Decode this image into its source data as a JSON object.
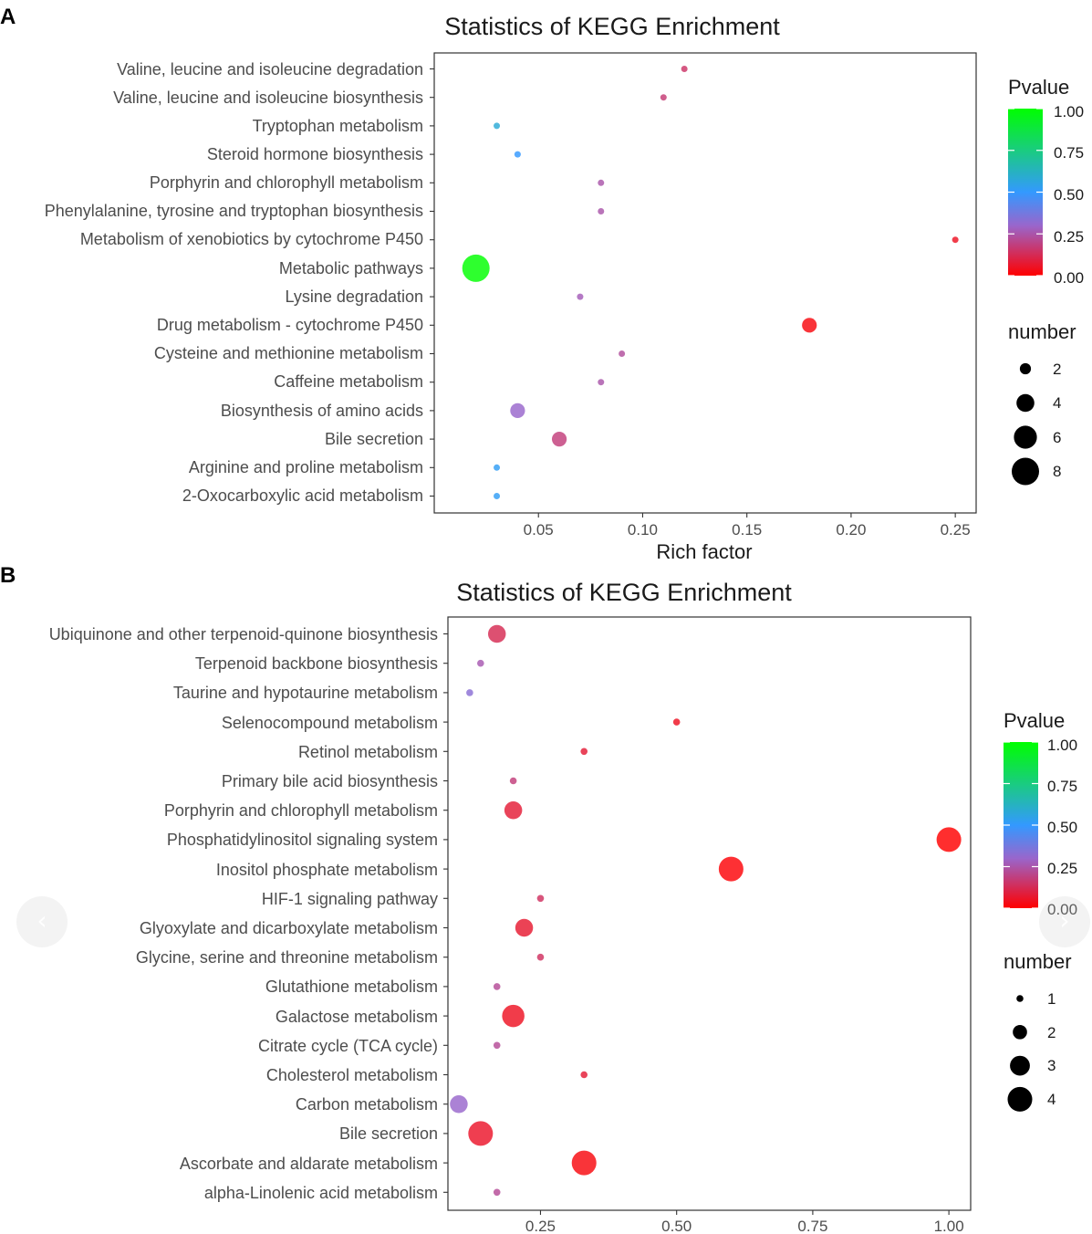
{
  "panels": [
    {
      "letter": "A",
      "chart_data": {
        "type": "scatter",
        "title": "Statistics of KEGG Enrichment",
        "xlabel": "Rich factor",
        "ylabel": "",
        "xlim": [
          0.0,
          0.26
        ],
        "xticks": [
          0.05,
          0.1,
          0.15,
          0.2,
          0.25
        ],
        "xtick_labels": [
          "0.05",
          "0.10",
          "0.15",
          "0.20",
          "0.25"
        ],
        "categories": [
          "Valine, leucine and isoleucine degradation",
          "Valine, leucine and isoleucine biosynthesis",
          "Tryptophan metabolism",
          "Steroid hormone biosynthesis",
          "Porphyrin and chlorophyll metabolism",
          "Phenylalanine, tyrosine and tryptophan biosynthesis",
          "Metabolism of xenobiotics by cytochrome P450",
          "Metabolic pathways",
          "Lysine degradation",
          "Drug metabolism - cytochrome P450",
          "Cysteine and methionine metabolism",
          "Caffeine metabolism",
          "Biosynthesis of amino acids",
          "Bile secretion",
          "Arginine and proline metabolism",
          "2-Oxocarboxylic acid metabolism"
        ],
        "points": [
          {
            "category": "Valine, leucine and isoleucine degradation",
            "rich_factor": 0.12,
            "number": 1,
            "pvalue": 0.15
          },
          {
            "category": "Valine, leucine and isoleucine biosynthesis",
            "rich_factor": 0.11,
            "number": 1,
            "pvalue": 0.17
          },
          {
            "category": "Tryptophan metabolism",
            "rich_factor": 0.03,
            "number": 1,
            "pvalue": 0.58
          },
          {
            "category": "Steroid hormone biosynthesis",
            "rich_factor": 0.04,
            "number": 1,
            "pvalue": 0.5
          },
          {
            "category": "Porphyrin and chlorophyll metabolism",
            "rich_factor": 0.08,
            "number": 1,
            "pvalue": 0.25
          },
          {
            "category": "Phenylalanine, tyrosine and tryptophan biosynthesis",
            "rich_factor": 0.08,
            "number": 1,
            "pvalue": 0.25
          },
          {
            "category": "Metabolism of xenobiotics by cytochrome P450",
            "rich_factor": 0.25,
            "number": 1,
            "pvalue": 0.05
          },
          {
            "category": "Metabolic pathways",
            "rich_factor": 0.02,
            "number": 8,
            "pvalue": 1.0
          },
          {
            "category": "Lysine degradation",
            "rich_factor": 0.07,
            "number": 1,
            "pvalue": 0.27
          },
          {
            "category": "Drug metabolism - cytochrome P450",
            "rich_factor": 0.18,
            "number": 3,
            "pvalue": 0.02
          },
          {
            "category": "Cysteine and methionine metabolism",
            "rich_factor": 0.09,
            "number": 1,
            "pvalue": 0.23
          },
          {
            "category": "Caffeine metabolism",
            "rich_factor": 0.08,
            "number": 1,
            "pvalue": 0.25
          },
          {
            "category": "Biosynthesis of amino acids",
            "rich_factor": 0.04,
            "number": 3,
            "pvalue": 0.3
          },
          {
            "category": "Bile secretion",
            "rich_factor": 0.06,
            "number": 3,
            "pvalue": 0.18
          },
          {
            "category": "Arginine and proline metabolism",
            "rich_factor": 0.03,
            "number": 1,
            "pvalue": 0.52
          },
          {
            "category": "2-Oxocarboxylic acid metabolism",
            "rich_factor": 0.03,
            "number": 1,
            "pvalue": 0.52
          }
        ],
        "size_min_number": 1,
        "size_max_number": 8,
        "legend_color": {
          "title": "Pvalue",
          "ticks": [
            "1.00",
            "0.75",
            "0.50",
            "0.25",
            "0.00"
          ]
        },
        "legend_size": {
          "title": "number",
          "entries": [
            2,
            4,
            6,
            8
          ],
          "labels": [
            "2",
            "4",
            "6",
            "8"
          ]
        },
        "legend_position": "right"
      }
    },
    {
      "letter": "B",
      "chart_data": {
        "type": "scatter",
        "title": "Statistics of KEGG Enrichment",
        "xlabel": "",
        "ylabel": "",
        "xlim": [
          0.08,
          1.04
        ],
        "xticks": [
          0.25,
          0.5,
          0.75,
          1.0
        ],
        "xtick_labels": [
          "0.25",
          "0.50",
          "0.75",
          "1.00"
        ],
        "categories": [
          "Ubiquinone and other terpenoid-quinone biosynthesis",
          "Terpenoid backbone biosynthesis",
          "Taurine and hypotaurine metabolism",
          "Selenocompound metabolism",
          "Retinol metabolism",
          "Primary bile acid biosynthesis",
          "Porphyrin and chlorophyll metabolism",
          "Phosphatidylinositol signaling system",
          "Inositol phosphate metabolism",
          "HIF-1 signaling pathway",
          "Glyoxylate and dicarboxylate metabolism",
          "Glycine, serine and threonine metabolism",
          "Glutathione metabolism",
          "Galactose metabolism",
          "Citrate cycle (TCA cycle)",
          "Cholesterol metabolism",
          "Carbon metabolism",
          "Bile secretion",
          "Ascorbate and aldarate metabolism",
          "alpha-Linolenic acid metabolism"
        ],
        "points": [
          {
            "category": "Ubiquinone and other terpenoid-quinone biosynthesis",
            "rich_factor": 0.17,
            "number": 2.6,
            "pvalue": 0.12
          },
          {
            "category": "Terpenoid backbone biosynthesis",
            "rich_factor": 0.14,
            "number": 1,
            "pvalue": 0.26
          },
          {
            "category": "Taurine and hypotaurine metabolism",
            "rich_factor": 0.12,
            "number": 1,
            "pvalue": 0.33
          },
          {
            "category": "Selenocompound metabolism",
            "rich_factor": 0.5,
            "number": 1,
            "pvalue": 0.05
          },
          {
            "category": "Retinol metabolism",
            "rich_factor": 0.33,
            "number": 1,
            "pvalue": 0.08
          },
          {
            "category": "Primary bile acid biosynthesis",
            "rich_factor": 0.2,
            "number": 1,
            "pvalue": 0.18
          },
          {
            "category": "Porphyrin and chlorophyll metabolism",
            "rich_factor": 0.2,
            "number": 2.6,
            "pvalue": 0.08
          },
          {
            "category": "Phosphatidylinositol signaling system",
            "rich_factor": 1.0,
            "number": 4,
            "pvalue": 0.0
          },
          {
            "category": "Inositol phosphate metabolism",
            "rich_factor": 0.6,
            "number": 4,
            "pvalue": 0.01
          },
          {
            "category": "HIF-1 signaling pathway",
            "rich_factor": 0.25,
            "number": 1,
            "pvalue": 0.14
          },
          {
            "category": "Glyoxylate and dicarboxylate metabolism",
            "rich_factor": 0.22,
            "number": 2.6,
            "pvalue": 0.07
          },
          {
            "category": "Glycine, serine and threonine metabolism",
            "rich_factor": 0.25,
            "number": 1,
            "pvalue": 0.14
          },
          {
            "category": "Glutathione metabolism",
            "rich_factor": 0.17,
            "number": 1,
            "pvalue": 0.22
          },
          {
            "category": "Galactose metabolism",
            "rich_factor": 0.2,
            "number": 3.5,
            "pvalue": 0.05
          },
          {
            "category": "Citrate cycle (TCA cycle)",
            "rich_factor": 0.17,
            "number": 1,
            "pvalue": 0.22
          },
          {
            "category": "Cholesterol metabolism",
            "rich_factor": 0.33,
            "number": 1,
            "pvalue": 0.08
          },
          {
            "category": "Carbon metabolism",
            "rich_factor": 0.1,
            "number": 2.6,
            "pvalue": 0.3
          },
          {
            "category": "Bile secretion",
            "rich_factor": 0.14,
            "number": 4,
            "pvalue": 0.06
          },
          {
            "category": "Ascorbate and aldarate metabolism",
            "rich_factor": 0.33,
            "number": 4,
            "pvalue": 0.02
          },
          {
            "category": "alpha-Linolenic acid metabolism",
            "rich_factor": 0.17,
            "number": 1,
            "pvalue": 0.22
          }
        ],
        "size_min_number": 1,
        "size_max_number": 4,
        "legend_color": {
          "title": "Pvalue",
          "ticks": [
            "1.00",
            "0.75",
            "0.50",
            "0.25",
            "0.00"
          ]
        },
        "legend_size": {
          "title": "number",
          "entries": [
            1,
            2,
            3,
            4
          ],
          "labels": [
            "1",
            "2",
            "3",
            "4"
          ]
        },
        "legend_position": "right"
      }
    }
  ],
  "nav": {
    "prev_glyph": "‹",
    "next_glyph": "›"
  },
  "colors": {
    "low": "#ff0000",
    "mid_low": "#9966cc",
    "mid": "#3399ff",
    "high": "#00ff00"
  }
}
